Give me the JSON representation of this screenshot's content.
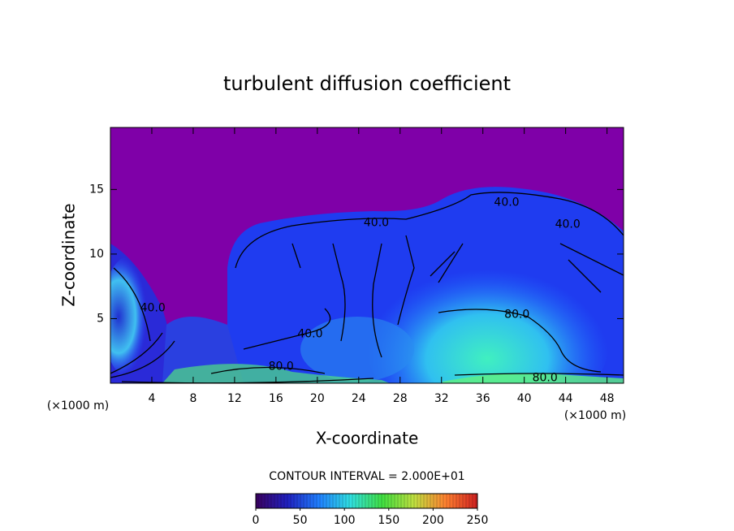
{
  "chart_data": {
    "type": "contour",
    "title": "turbulent diffusion coefficient",
    "x_label": "X-coordinate",
    "y_label": "Z-coordinate",
    "x_unit": "(×1000 m)",
    "y_unit": "(×1000 m)",
    "xlim": [
      0,
      49.6
    ],
    "xticks": [
      4,
      8,
      12,
      16,
      20,
      24,
      28,
      32,
      36,
      40,
      44,
      48
    ],
    "ylim": [
      0,
      19.8
    ],
    "yticks": [
      5,
      10,
      15
    ],
    "contour_labels": [
      {
        "value": 40,
        "label": "40.0",
        "x": 38.3,
        "y": 14.0
      },
      {
        "value": 40,
        "label": "40.0",
        "x": 44.2,
        "y": 12.3
      },
      {
        "value": 40,
        "label": "40.0",
        "x": 25.7,
        "y": 12.4
      },
      {
        "value": 40,
        "label": "40.0",
        "x": 4.1,
        "y": 5.8
      },
      {
        "value": 40,
        "label": "40.0",
        "x": 19.3,
        "y": 3.8
      },
      {
        "value": 80,
        "label": "80.0",
        "x": 39.3,
        "y": 5.3
      },
      {
        "value": 80,
        "label": "80.0",
        "x": 16.5,
        "y": 1.3
      },
      {
        "value": 80,
        "label": "80.0",
        "x": 42.0,
        "y": 0.4
      }
    ],
    "contour_interval": "CONTOUR INTERVAL = 2.000E+01",
    "colorbar": {
      "lim": [
        0,
        250
      ],
      "ticks": [
        0,
        50,
        100,
        150,
        200,
        250
      ],
      "colormap": [
        "#3a0060",
        "#2020c0",
        "#2080ff",
        "#30e0e0",
        "#40e040",
        "#c0e040",
        "#ff8030",
        "#d02020"
      ]
    }
  }
}
